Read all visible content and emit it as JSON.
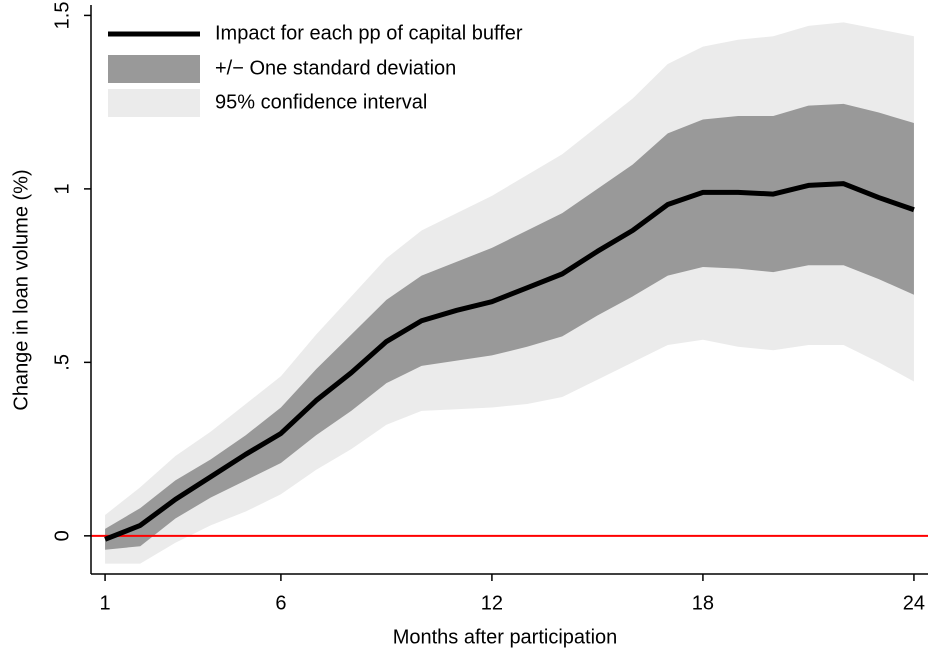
{
  "chart_data": {
    "type": "line",
    "x_label": "Months after participation",
    "y_label": "Change in loan volume (%)",
    "x": [
      1,
      2,
      3,
      4,
      5,
      6,
      7,
      8,
      9,
      10,
      11,
      12,
      13,
      14,
      15,
      16,
      17,
      18,
      19,
      20,
      21,
      22,
      23,
      24
    ],
    "xlim": [
      0.6,
      24.4
    ],
    "xticks": [
      1,
      6,
      12,
      18,
      24
    ],
    "ylim": [
      -0.11,
      1.53
    ],
    "yticks": [
      0,
      {
        "value": 0.5,
        "label": ".5"
      },
      1,
      1.5
    ],
    "hline": {
      "value": 0,
      "color": "#ff0000"
    },
    "legend": "top-left",
    "series": [
      {
        "name": "Impact for each pp of capital buffer",
        "color": "#000000",
        "values": [
          -0.01,
          0.03,
          0.105,
          0.17,
          0.235,
          0.295,
          0.39,
          0.47,
          0.56,
          0.62,
          0.65,
          0.675,
          0.715,
          0.755,
          0.82,
          0.88,
          0.955,
          0.99,
          0.99,
          0.985,
          1.01,
          1.015,
          0.975,
          0.94
        ]
      }
    ],
    "bands": [
      {
        "name": "+/− One standard deviation",
        "color": "#999999",
        "lower": [
          -0.04,
          -0.03,
          0.05,
          0.11,
          0.16,
          0.21,
          0.29,
          0.36,
          0.44,
          0.49,
          0.505,
          0.52,
          0.545,
          0.575,
          0.635,
          0.69,
          0.75,
          0.775,
          0.77,
          0.76,
          0.78,
          0.78,
          0.74,
          0.695
        ],
        "upper": [
          0.02,
          0.08,
          0.16,
          0.22,
          0.29,
          0.37,
          0.48,
          0.58,
          0.68,
          0.75,
          0.79,
          0.83,
          0.88,
          0.93,
          1.0,
          1.07,
          1.16,
          1.2,
          1.21,
          1.21,
          1.24,
          1.245,
          1.22,
          1.19
        ]
      },
      {
        "name": "95% confidence interval",
        "color": "#ebebeb",
        "lower": [
          -0.08,
          -0.08,
          -0.02,
          0.03,
          0.07,
          0.12,
          0.19,
          0.25,
          0.32,
          0.36,
          0.365,
          0.37,
          0.38,
          0.4,
          0.45,
          0.5,
          0.55,
          0.565,
          0.545,
          0.535,
          0.55,
          0.55,
          0.5,
          0.445
        ],
        "upper": [
          0.06,
          0.14,
          0.23,
          0.3,
          0.38,
          0.46,
          0.58,
          0.69,
          0.8,
          0.88,
          0.93,
          0.98,
          1.04,
          1.1,
          1.18,
          1.26,
          1.36,
          1.41,
          1.43,
          1.44,
          1.47,
          1.48,
          1.46,
          1.44
        ]
      }
    ]
  }
}
